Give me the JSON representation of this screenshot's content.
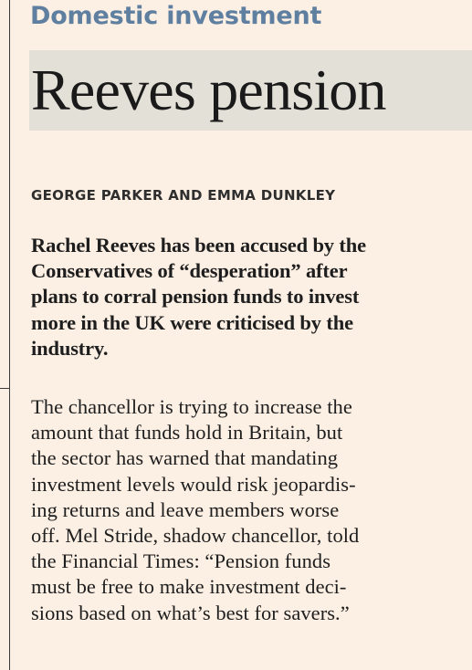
{
  "article": {
    "kicker": "Domestic investment",
    "headline": "Reeves pension",
    "byline": "GEORGE PARKER AND EMMA DUNKLEY",
    "standfirst_lines": [
      "Rachel Reeves has been accused by the",
      "Conservatives of “desperation” after",
      "plans to corral pension funds to invest",
      "more in the UK were criticised by the",
      "industry."
    ],
    "body_lines": [
      "The chancellor is trying to increase the",
      "amount that funds hold in Britain, but",
      "the sector has warned that mandating",
      "investment levels would risk jeopardis-",
      "ing returns and leave members worse",
      "off. Mel Stride, shadow chancellor, told",
      "the Financial Times: “Pension funds",
      "must be free to make investment deci-",
      "sions based on what’s best for savers.”"
    ]
  }
}
